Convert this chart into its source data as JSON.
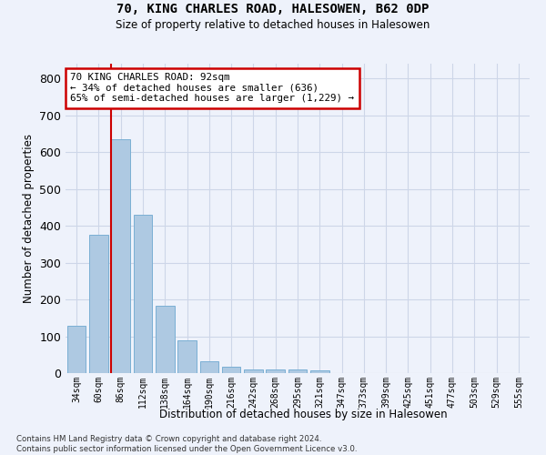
{
  "title1": "70, KING CHARLES ROAD, HALESOWEN, B62 0DP",
  "title2": "Size of property relative to detached houses in Halesowen",
  "xlabel": "Distribution of detached houses by size in Halesowen",
  "ylabel": "Number of detached properties",
  "bin_labels": [
    "34sqm",
    "60sqm",
    "86sqm",
    "112sqm",
    "138sqm",
    "164sqm",
    "190sqm",
    "216sqm",
    "242sqm",
    "268sqm",
    "295sqm",
    "321sqm",
    "347sqm",
    "373sqm",
    "399sqm",
    "425sqm",
    "451sqm",
    "477sqm",
    "503sqm",
    "529sqm",
    "555sqm"
  ],
  "bar_values": [
    128,
    375,
    636,
    430,
    183,
    88,
    32,
    18,
    10,
    10,
    10,
    8,
    0,
    0,
    0,
    0,
    0,
    0,
    0,
    0,
    0
  ],
  "bar_color": "#aec9e2",
  "bar_edgecolor": "#7aafd4",
  "annotation_text": "70 KING CHARLES ROAD: 92sqm\n← 34% of detached houses are smaller (636)\n65% of semi-detached houses are larger (1,229) →",
  "annotation_box_color": "#ffffff",
  "annotation_box_edgecolor": "#cc0000",
  "vline_color": "#cc0000",
  "ylim": [
    0,
    840
  ],
  "yticks": [
    0,
    100,
    200,
    300,
    400,
    500,
    600,
    700,
    800
  ],
  "footer": "Contains HM Land Registry data © Crown copyright and database right 2024.\nContains public sector information licensed under the Open Government Licence v3.0.",
  "bg_color": "#eef2fb",
  "grid_color": "#cdd6e8"
}
